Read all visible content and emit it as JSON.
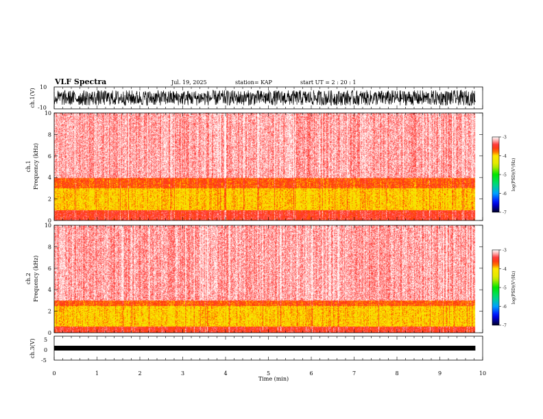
{
  "header": {
    "title": "VLF Spectra",
    "date": "Jul. 19, 2025",
    "station": "station= KAP",
    "start": "start UT =  2 : 20 : 1"
  },
  "chart_data": [
    {
      "type": "line",
      "name": "ch1-waveform",
      "ylabel": "ch.1(V)",
      "ylim": [
        -10,
        10
      ],
      "yticks": [
        "10",
        "-10"
      ],
      "xlim": [
        0,
        10
      ],
      "data_end_min": 9.83,
      "amplitude_range_V": [
        -7,
        7
      ]
    },
    {
      "type": "heatmap",
      "name": "ch1-spectrogram",
      "ylabel": "ch.1\nFrequency (kHz)",
      "ylim": [
        0,
        10
      ],
      "yticks": [
        "0",
        "2",
        "4",
        "6",
        "8",
        "10"
      ],
      "xlim": [
        0,
        10
      ],
      "data_end_min": 9.83,
      "colorbar": {
        "label": "log(PSD)(V²/Hz)",
        "range": [
          -7,
          -3
        ],
        "ticks": [
          "-3",
          "-4",
          "-5",
          "-6",
          "-7"
        ]
      },
      "bands": [
        {
          "from_khz": 0.0,
          "to_khz": 1.0,
          "level": -3.5
        },
        {
          "from_khz": 1.0,
          "to_khz": 3.0,
          "level": -4.0
        },
        {
          "from_khz": 3.0,
          "to_khz": 4.0,
          "level": -3.7
        },
        {
          "from_khz": 4.0,
          "to_khz": 10.0,
          "level": -3.2
        }
      ]
    },
    {
      "type": "heatmap",
      "name": "ch2-spectrogram",
      "ylabel": "ch.2\nFrequency (kHz)",
      "ylim": [
        0,
        10
      ],
      "yticks": [
        "0",
        "2",
        "4",
        "6",
        "8",
        "10"
      ],
      "xlim": [
        0,
        10
      ],
      "data_end_min": 9.83,
      "colorbar": {
        "label": "log(PSD)(V²/Hz)",
        "range": [
          -7,
          -3
        ],
        "ticks": [
          "-3",
          "-4",
          "-5",
          "-6",
          "-7"
        ]
      },
      "bands": [
        {
          "from_khz": 0.0,
          "to_khz": 0.6,
          "level": -3.5
        },
        {
          "from_khz": 0.6,
          "to_khz": 2.5,
          "level": -4.0
        },
        {
          "from_khz": 2.5,
          "to_khz": 3.0,
          "level": -3.7
        },
        {
          "from_khz": 3.0,
          "to_khz": 10.0,
          "level": -3.2
        }
      ]
    },
    {
      "type": "line",
      "name": "ch3-waveform",
      "ylabel": "ch.3(V)",
      "ylim": [
        -5,
        5
      ],
      "yticks": [
        "5",
        "0",
        "-5"
      ],
      "xlim": [
        0,
        10
      ],
      "data_end_min": 9.83,
      "amplitude_range_V": [
        -1,
        1
      ]
    }
  ],
  "xaxis": {
    "label": "Time (min)",
    "ticks": [
      "0",
      "1",
      "2",
      "3",
      "4",
      "5",
      "6",
      "7",
      "8",
      "9",
      "10"
    ]
  }
}
